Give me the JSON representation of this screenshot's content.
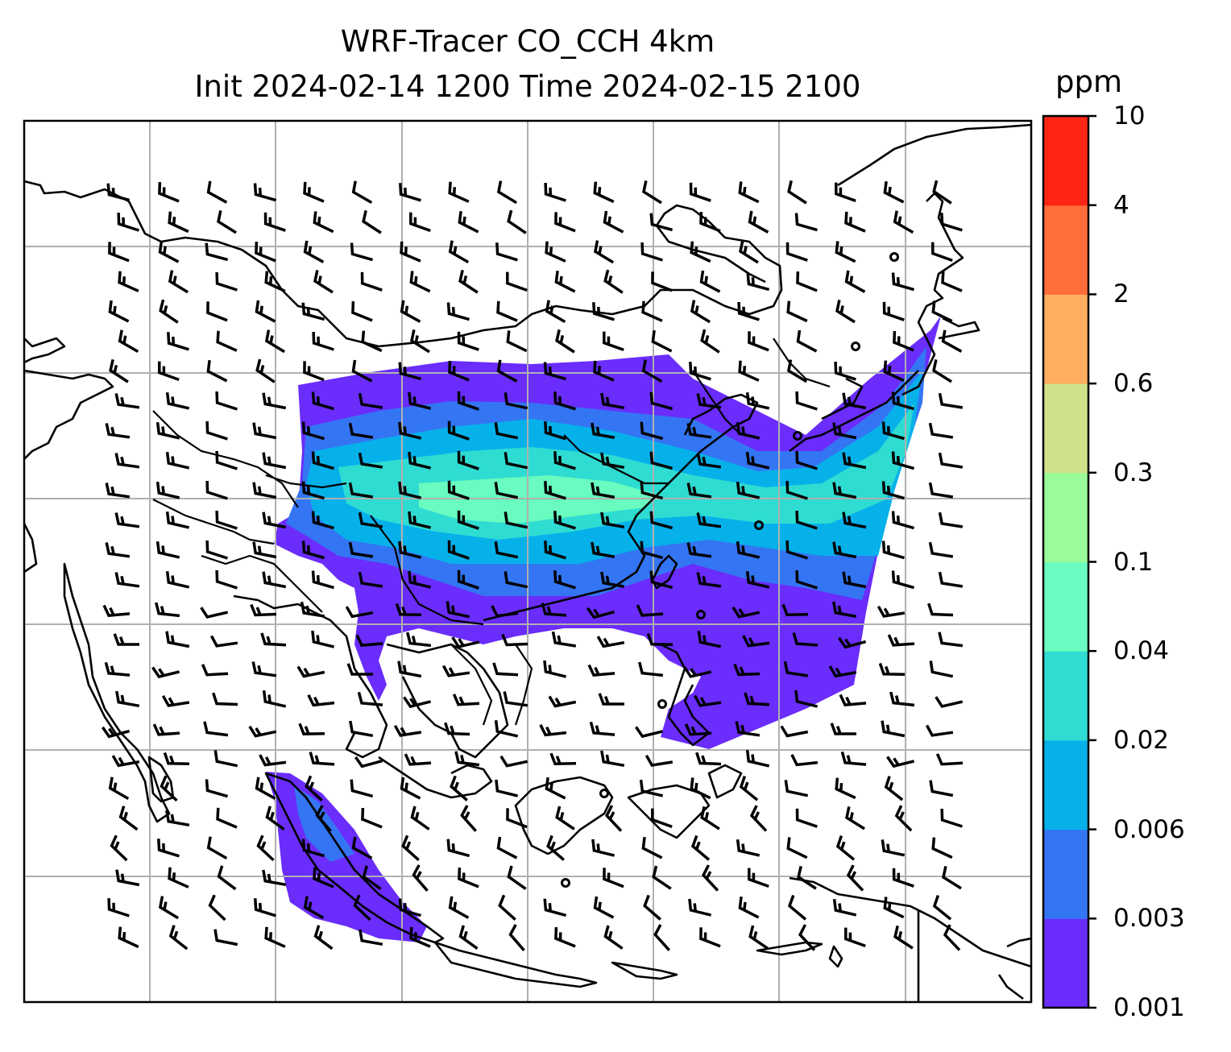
{
  "title": {
    "line1": "WRF-Tracer CO_CCH 4km",
    "line2": "Init 2024-02-14 1200 Time 2024-02-15 2100"
  },
  "colorbar": {
    "unit": "ppm",
    "ticks": [
      "0.001",
      "0.003",
      "0.006",
      "0.02",
      "0.04",
      "0.1",
      "0.3",
      "0.6",
      "2",
      "4",
      "10"
    ],
    "colors": [
      "#6a2dfb",
      "#3475f3",
      "#06b1ea",
      "#2fdcd2",
      "#69fbbf",
      "#9bfb9a",
      "#cfe18a",
      "#ffae5f",
      "#ff6d3a",
      "#ff2515"
    ]
  },
  "map": {
    "region": "East and Southeast Asia",
    "features": [
      "coastlines",
      "country-borders",
      "gridlines",
      "wind-barbs",
      "tracer-plume"
    ],
    "line_color": "#000000",
    "grid_color": "#b0b0b0"
  }
}
